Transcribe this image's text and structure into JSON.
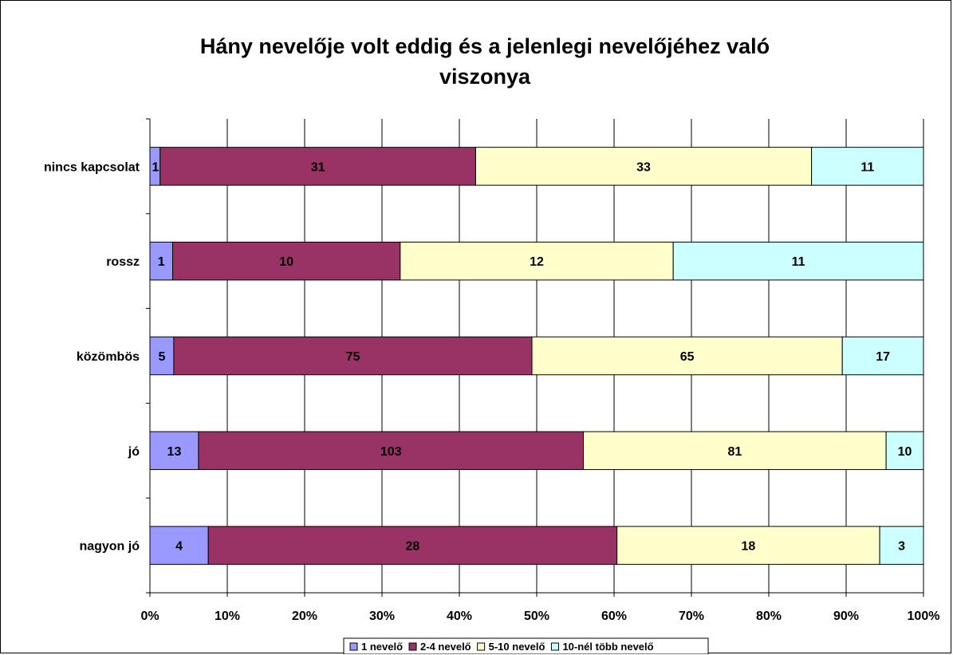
{
  "chart_data": {
    "type": "bar",
    "orientation": "horizontal",
    "stacked": "percent",
    "title_lines": [
      "Hány nevelője volt eddig és a jelenlegi nevelőjéhez való",
      "viszonya"
    ],
    "categories": [
      "nincs kapcsolat",
      "rossz",
      "közömbös",
      "jó",
      "nagyon jó"
    ],
    "series": [
      {
        "name": "1 nevelő",
        "color": "#9999ff",
        "values": [
          1,
          1,
          5,
          13,
          4
        ]
      },
      {
        "name": "2-4 nevelő",
        "color": "#993366",
        "values": [
          31,
          10,
          75,
          103,
          28
        ]
      },
      {
        "name": "5-10 nevelő",
        "color": "#ffffcc",
        "values": [
          33,
          12,
          65,
          81,
          18
        ]
      },
      {
        "name": "10-nél több nevelő",
        "color": "#ccffff",
        "values": [
          11,
          11,
          17,
          10,
          3
        ]
      }
    ],
    "xaxis": {
      "ticks": [
        "0%",
        "10%",
        "20%",
        "30%",
        "40%",
        "50%",
        "60%",
        "70%",
        "80%",
        "90%",
        "100%"
      ],
      "range": [
        0,
        100
      ],
      "grid": true
    },
    "legend_position": "bottom"
  }
}
